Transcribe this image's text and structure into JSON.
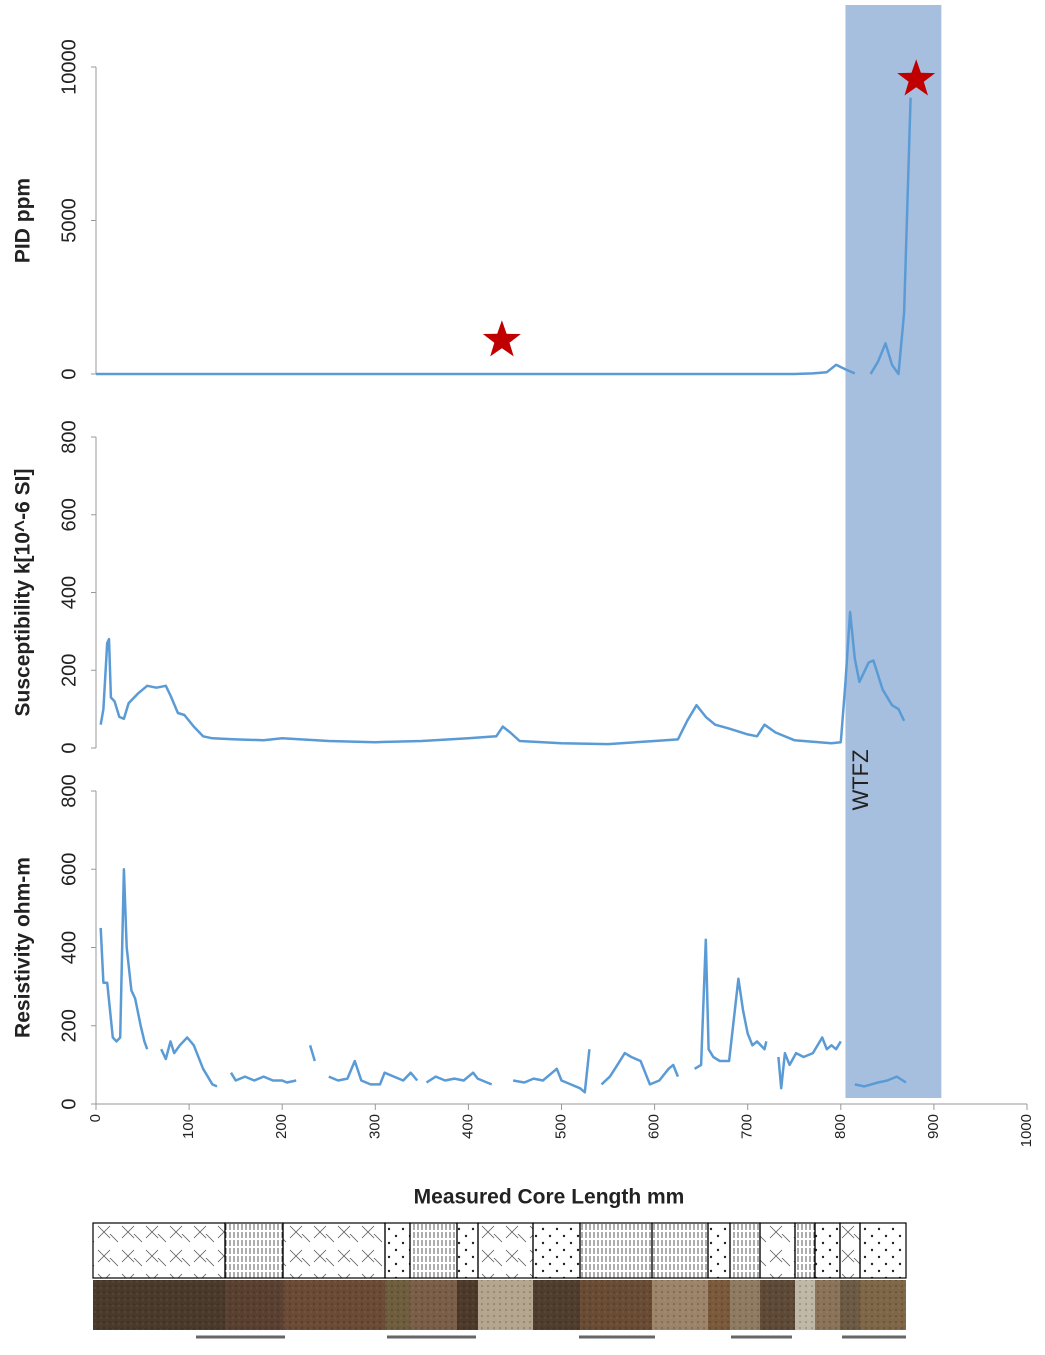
{
  "chart_data": [
    {
      "type": "line",
      "ylabel": "PID ppm",
      "ylim": [
        0,
        10000
      ],
      "yticks": [
        0,
        5000,
        10000
      ],
      "series": [
        {
          "color": "#5b9bd5",
          "x": [
            0,
            100,
            200,
            300,
            400,
            500,
            600,
            700,
            750,
            770,
            785,
            795,
            805,
            815,
            825,
            832,
            840,
            848,
            855,
            862,
            868,
            875
          ],
          "values": [
            0,
            0,
            0,
            0,
            0,
            0,
            0,
            0,
            0,
            20,
            60,
            300,
            150,
            20,
            null,
            0,
            400,
            1000,
            300,
            0,
            2000,
            9000
          ]
        }
      ],
      "markers": {
        "color": "#c00000",
        "x": [
          436,
          881
        ],
        "values": [
          1100,
          9600
        ]
      }
    },
    {
      "type": "line",
      "ylabel": "Susceptibility k[10^-6 SI]",
      "ylim": [
        0,
        800
      ],
      "yticks": [
        0,
        200,
        400,
        600,
        800
      ],
      "series": [
        {
          "color": "#5b9bd5",
          "x": [
            5,
            8,
            12,
            14,
            16,
            20,
            25,
            30,
            35,
            45,
            55,
            65,
            75,
            80,
            88,
            95,
            105,
            115,
            125,
            150,
            180,
            200,
            250,
            300,
            350,
            400,
            430,
            437,
            445,
            455,
            500,
            550,
            600,
            625,
            635,
            645,
            655,
            665,
            680,
            700,
            710,
            718,
            730,
            750,
            790,
            800,
            805,
            810,
            815,
            820,
            830,
            835,
            845,
            855,
            862,
            868
          ],
          "values": [
            60,
            100,
            270,
            280,
            130,
            120,
            80,
            75,
            115,
            140,
            160,
            155,
            160,
            135,
            90,
            85,
            55,
            30,
            25,
            22,
            20,
            25,
            18,
            15,
            18,
            25,
            30,
            55,
            40,
            18,
            12,
            10,
            18,
            22,
            70,
            110,
            80,
            60,
            50,
            35,
            30,
            60,
            40,
            20,
            12,
            15,
            170,
            350,
            230,
            170,
            220,
            225,
            150,
            110,
            100,
            70
          ]
        }
      ]
    },
    {
      "type": "line",
      "ylabel": "Resistivity ohm-m",
      "ylim": [
        0,
        800
      ],
      "yticks": [
        0,
        200,
        400,
        600,
        800
      ],
      "xlabel": "Measured Core Length mm",
      "xlim": [
        0,
        1000
      ],
      "xticks": [
        0,
        100,
        200,
        300,
        400,
        500,
        600,
        700,
        800,
        900,
        1000
      ],
      "shaded_region": {
        "xlim": [
          805,
          908
        ],
        "label": "WTFZ",
        "color": "#a7bfdf"
      },
      "series": [
        {
          "color": "#5b9bd5",
          "x": [
            5,
            8,
            12,
            18,
            22,
            26,
            30,
            33,
            38,
            42,
            48,
            52,
            55,
            62,
            70,
            75,
            80,
            84,
            90,
            98,
            105,
            115,
            125,
            130,
            137,
            145,
            150,
            160,
            170,
            180,
            190,
            200,
            205,
            215,
            225,
            230,
            235,
            242,
            250,
            260,
            270,
            278,
            285,
            295,
            305,
            310,
            320,
            330,
            338,
            345,
            350,
            355,
            365,
            375,
            385,
            395,
            405,
            410,
            420,
            425,
            435,
            448,
            460,
            470,
            480,
            490,
            495,
            500,
            510,
            520,
            525,
            530,
            536,
            543,
            552,
            560,
            568,
            575,
            585,
            595,
            605,
            615,
            620,
            625,
            635,
            643,
            650,
            655,
            658,
            663,
            670,
            680,
            690,
            695,
            700,
            705,
            710,
            718,
            720,
            727,
            733,
            736,
            740,
            745,
            752,
            760,
            770,
            780,
            785,
            790,
            795,
            800,
            808,
            815,
            825,
            840,
            850,
            860,
            870
          ],
          "values": [
            450,
            310,
            310,
            170,
            160,
            170,
            600,
            400,
            290,
            270,
            200,
            160,
            140,
            null,
            140,
            115,
            160,
            130,
            150,
            170,
            150,
            90,
            50,
            45,
            null,
            80,
            60,
            70,
            60,
            70,
            60,
            60,
            55,
            60,
            null,
            150,
            110,
            null,
            70,
            60,
            65,
            110,
            60,
            50,
            50,
            80,
            70,
            60,
            80,
            60,
            null,
            55,
            70,
            60,
            65,
            60,
            80,
            65,
            55,
            50,
            null,
            60,
            55,
            65,
            60,
            80,
            90,
            60,
            50,
            40,
            30,
            140,
            null,
            50,
            70,
            100,
            130,
            120,
            110,
            50,
            60,
            90,
            100,
            70,
            null,
            90,
            100,
            420,
            140,
            120,
            110,
            110,
            320,
            240,
            180,
            150,
            160,
            140,
            160,
            null,
            120,
            40,
            130,
            100,
            130,
            120,
            130,
            170,
            140,
            150,
            140,
            160,
            null,
            50,
            45,
            55,
            60,
            70,
            55
          ]
        }
      ]
    }
  ]
}
